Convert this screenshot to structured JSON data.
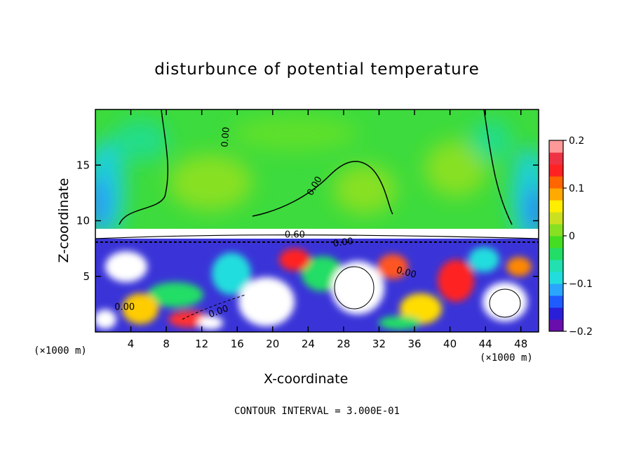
{
  "chart_data": {
    "type": "heatmap",
    "title": "disturbunce of potential temperature",
    "xlabel": "X-coordinate",
    "ylabel": "Z-coordinate",
    "x_unit": "(×1000 m)",
    "xlim": [
      0,
      50
    ],
    "ylim": [
      0,
      20
    ],
    "x_ticks": [
      "4",
      "8",
      "12",
      "16",
      "20",
      "24",
      "28",
      "32",
      "36",
      "40",
      "44",
      "48"
    ],
    "x_tick_values": [
      4,
      8,
      12,
      16,
      20,
      24,
      28,
      32,
      36,
      40,
      44,
      48
    ],
    "y_ticks": [
      "5",
      "10",
      "15"
    ],
    "y_tick_values": [
      5,
      10,
      15
    ],
    "colorbar": {
      "min": -0.2,
      "max": 0.2,
      "tick_labels": [
        "0.2",
        "0.1",
        "0",
        "−0.1",
        "−0.2"
      ],
      "tick_values": [
        0.2,
        0.1,
        0,
        -0.1,
        -0.2
      ],
      "colors": [
        "#6a0dad",
        "#2a1fd8",
        "#1f5cff",
        "#2aa6ff",
        "#22dddd",
        "#22e0b0",
        "#22dd66",
        "#44dd22",
        "#88e022",
        "#cce022",
        "#ffee00",
        "#ffaa00",
        "#ff6600",
        "#ff2222",
        "#ee3344",
        "#ff9999"
      ]
    },
    "contour_labels": [
      {
        "text": "0.00",
        "x": 15.0,
        "z": 17.5,
        "rot": -85
      },
      {
        "text": "0.00",
        "x": 25.0,
        "z": 13.0,
        "rot": -60
      },
      {
        "text": "0.60",
        "x": 22.5,
        "z": 8.5,
        "rot": 0
      },
      {
        "text": "0.00",
        "x": 28.0,
        "z": 7.8,
        "rot": -8
      },
      {
        "text": "0.00",
        "x": 35.0,
        "z": 5.1,
        "rot": 15
      },
      {
        "text": "0.00",
        "x": 3.3,
        "z": 2.0,
        "rot": 0
      },
      {
        "text": "0.00",
        "x": 14.0,
        "z": 1.6,
        "rot": -20
      }
    ],
    "contour_interval_text": "CONTOUR INTERVAL = 3.000E-01",
    "grid": false
  }
}
